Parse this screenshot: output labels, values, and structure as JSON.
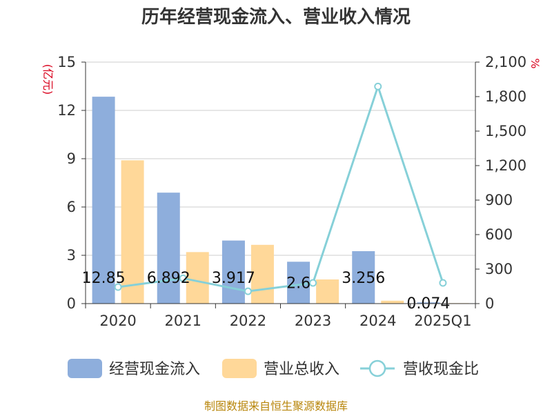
{
  "title": "历年经营现金流入、营业收入情况",
  "source": "制图数据来自恒生聚源数据库",
  "chart_data": {
    "type": "bar",
    "categories": [
      "2020",
      "2021",
      "2022",
      "2023",
      "2024",
      "2025Q1"
    ],
    "y_left": {
      "unit": "(亿元)",
      "min": 0,
      "max": 15,
      "ticks": [
        0,
        3,
        6,
        9,
        12,
        15
      ]
    },
    "y_right": {
      "unit": "%",
      "min": 0,
      "max": 2100,
      "ticks": [
        0,
        300,
        600,
        900,
        1200,
        1500,
        1800,
        2100
      ],
      "tick_labels": [
        "0",
        "300",
        "600",
        "900",
        "1,200",
        "1,500",
        "1,800",
        "2,100"
      ]
    },
    "grid": true,
    "legend_position": "bottom",
    "series": [
      {
        "name": "经营现金流入",
        "kind": "bar",
        "axis": "left",
        "color": "#8eaedc",
        "values": [
          12.85,
          6.892,
          3.917,
          2.6,
          3.256,
          0.074
        ],
        "labels": [
          "12.85",
          "6.892",
          "3.917",
          "2.6",
          "3.256",
          "0.074"
        ]
      },
      {
        "name": "营业总收入",
        "kind": "bar",
        "axis": "left",
        "color": "#ffd899",
        "values": [
          8.9,
          3.2,
          3.65,
          1.5,
          0.18,
          0.03
        ]
      },
      {
        "name": "营收现金比",
        "kind": "line",
        "axis": "right",
        "color": "#86d0d8",
        "values": [
          144,
          220,
          107,
          180,
          1888,
          180
        ]
      }
    ]
  }
}
